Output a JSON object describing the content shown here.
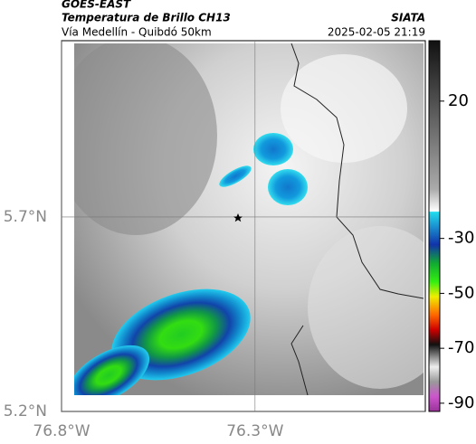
{
  "header": {
    "title": "GOES-EAST",
    "subtitle": "Temperatura de Brillo CH13",
    "source": "SIATA",
    "route": "Vía Medellín - Quibdó 50km",
    "datetime": "2025-02-05 21:19"
  },
  "map": {
    "xlim": [
      -76.8,
      -75.86
    ],
    "ylim": [
      5.2,
      6.153
    ],
    "xticks": [
      {
        "value": -76.8,
        "label": "76.8°W"
      },
      {
        "value": -76.3,
        "label": "76.3°W"
      }
    ],
    "yticks": [
      {
        "value": 5.2,
        "label": "5.2°N"
      },
      {
        "value": 5.7,
        "label": "5.7°N"
      }
    ]
  },
  "colorbar": {
    "lim": [
      -93,
      42
    ],
    "ticks": [
      20,
      -30,
      -50,
      -70,
      -90
    ]
  }
}
